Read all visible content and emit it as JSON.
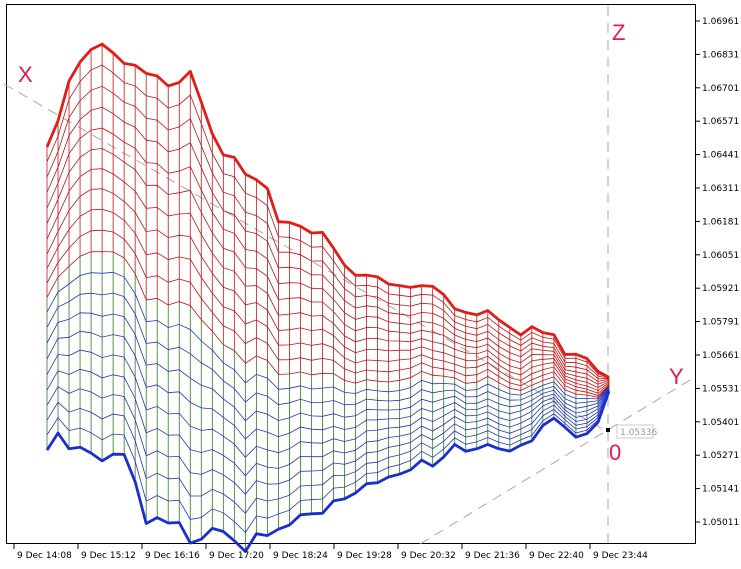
{
  "colors": {
    "background": "#ffffff",
    "frame": "#000000",
    "ridge_top": "#e41b17",
    "ridge_bottom": "#1a2ed1",
    "mesh_green": "#2f7a1e",
    "mesh_blue": "#2436c4",
    "mesh_red": "#c01515",
    "axis_letters": "#e8174f",
    "guide_lines": "#a8a8a8"
  },
  "chart_data": {
    "type": "3d-surface",
    "price_axis": {
      "ticks": [
        "1.06961",
        "1.06831",
        "1.06701",
        "1.06571",
        "1.06441",
        "1.06311",
        "1.06181",
        "1.06051",
        "1.05921",
        "1.05791",
        "1.05661",
        "1.05531",
        "1.05401",
        "1.05271",
        "1.05141",
        "1.05011"
      ]
    },
    "time_axis": {
      "ticks": [
        "9 Dec 14:08",
        "9 Dec 15:12",
        "9 Dec 16:16",
        "9 Dec 17:20",
        "9 Dec 18:24",
        "9 Dec 19:28",
        "9 Dec 20:32",
        "9 Dec 21:36",
        "9 Dec 22:40",
        "9 Dec 23:44"
      ]
    },
    "axis_letters": {
      "x": "X",
      "y": "Y",
      "z": "Z",
      "origin": "0"
    },
    "price_marker": "1.05336",
    "series": [
      {
        "values": [
          1.06471,
          1.06572,
          1.06727,
          1.06801,
          1.0685,
          1.06871,
          1.06837,
          1.06796,
          1.06789,
          1.06757,
          1.06747,
          1.06708,
          1.06722,
          1.06765,
          1.06645,
          1.06522,
          1.0644,
          1.0643,
          1.06365,
          1.06343,
          1.06309,
          1.0618,
          1.06177,
          1.06162,
          1.06136,
          1.06138,
          1.06077,
          1.06011,
          1.05971,
          1.05972,
          1.05965,
          1.05937,
          1.05931,
          1.05924,
          1.05931,
          1.05928,
          1.05896,
          1.05841,
          1.05827,
          1.05817,
          1.05834,
          1.05798,
          1.05768,
          1.05739,
          1.05771,
          1.05748,
          1.0574,
          1.05663,
          1.05664,
          1.05647,
          1.05597,
          1.05574
        ]
      },
      {
        "values": [
          1.05291,
          1.05357,
          1.05296,
          1.05302,
          1.05279,
          1.05249,
          1.05275,
          1.05274,
          1.05167,
          1.05005,
          1.05028,
          1.05007,
          1.05009,
          1.04929,
          1.04944,
          1.04986,
          1.04974,
          1.04938,
          1.04896,
          1.04965,
          1.04958,
          1.04983,
          1.04999,
          1.05039,
          1.05043,
          1.05045,
          1.05093,
          1.05101,
          1.05124,
          1.0516,
          1.05164,
          1.05186,
          1.05197,
          1.05214,
          1.05252,
          1.05228,
          1.05264,
          1.05313,
          1.05286,
          1.05296,
          1.05313,
          1.05296,
          1.05287,
          1.0531,
          1.05327,
          1.05387,
          1.05415,
          1.0538,
          1.05341,
          1.05355,
          1.05399,
          1.0552
        ]
      }
    ]
  }
}
